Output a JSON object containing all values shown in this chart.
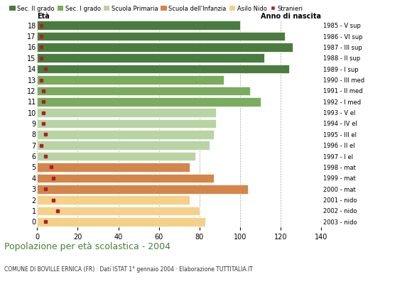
{
  "ages": [
    18,
    17,
    16,
    15,
    14,
    13,
    12,
    11,
    10,
    9,
    8,
    7,
    6,
    5,
    4,
    3,
    2,
    1,
    0
  ],
  "values": [
    100,
    122,
    126,
    112,
    124,
    92,
    105,
    110,
    88,
    88,
    87,
    85,
    78,
    75,
    87,
    104,
    75,
    80,
    83
  ],
  "stranieri": [
    2,
    2,
    2,
    2,
    4,
    2,
    3,
    3,
    3,
    3,
    4,
    2,
    4,
    7,
    8,
    4,
    8,
    10,
    4
  ],
  "anno_nascita": [
    "1985 - V sup",
    "1986 - VI sup",
    "1987 - III sup",
    "1988 - II sup",
    "1989 - I sup",
    "1990 - III med",
    "1991 - II med",
    "1992 - I med",
    "1993 - V el",
    "1994 - IV el",
    "1995 - III el",
    "1996 - II el",
    "1997 - I el",
    "1998 - mat",
    "1999 - mat",
    "2000 - mat",
    "2001 - nido",
    "2002 - nido",
    "2003 - nido"
  ],
  "bar_colors": {
    "sec2": "#4a7c3f",
    "sec1": "#7aab5e",
    "primaria": "#b8d4a3",
    "infanzia": "#d4854a",
    "nido": "#f5d08a",
    "stranieri": "#aa2222"
  },
  "age_groups": {
    "sec2": [
      14,
      15,
      16,
      17,
      18
    ],
    "sec1": [
      11,
      12,
      13
    ],
    "primaria": [
      6,
      7,
      8,
      9,
      10
    ],
    "infanzia": [
      3,
      4,
      5
    ],
    "nido": [
      0,
      1,
      2
    ]
  },
  "legend_labels": [
    "Sec. II grado",
    "Sec. I grado",
    "Scuola Primaria",
    "Scuola dell'Infanzia",
    "Asilo Nido",
    "Stranieri"
  ],
  "title": "Popolazione per età scolastica - 2004",
  "subtitle": "COMUNE DI BOVILLE ERNICA (FR) · Dati ISTAT 1° gennaio 2004 · Elaborazione TUTTITALIA.IT",
  "xlabel_left": "Età",
  "xlabel_right": "Anno di nascita",
  "xlim": [
    0,
    140
  ],
  "xticks": [
    0,
    20,
    40,
    60,
    80,
    100,
    120,
    140
  ],
  "title_color": "#4a7c3f",
  "subtitle_color": "#333333",
  "background_color": "#ffffff",
  "grid_color": "#aaaaaa"
}
